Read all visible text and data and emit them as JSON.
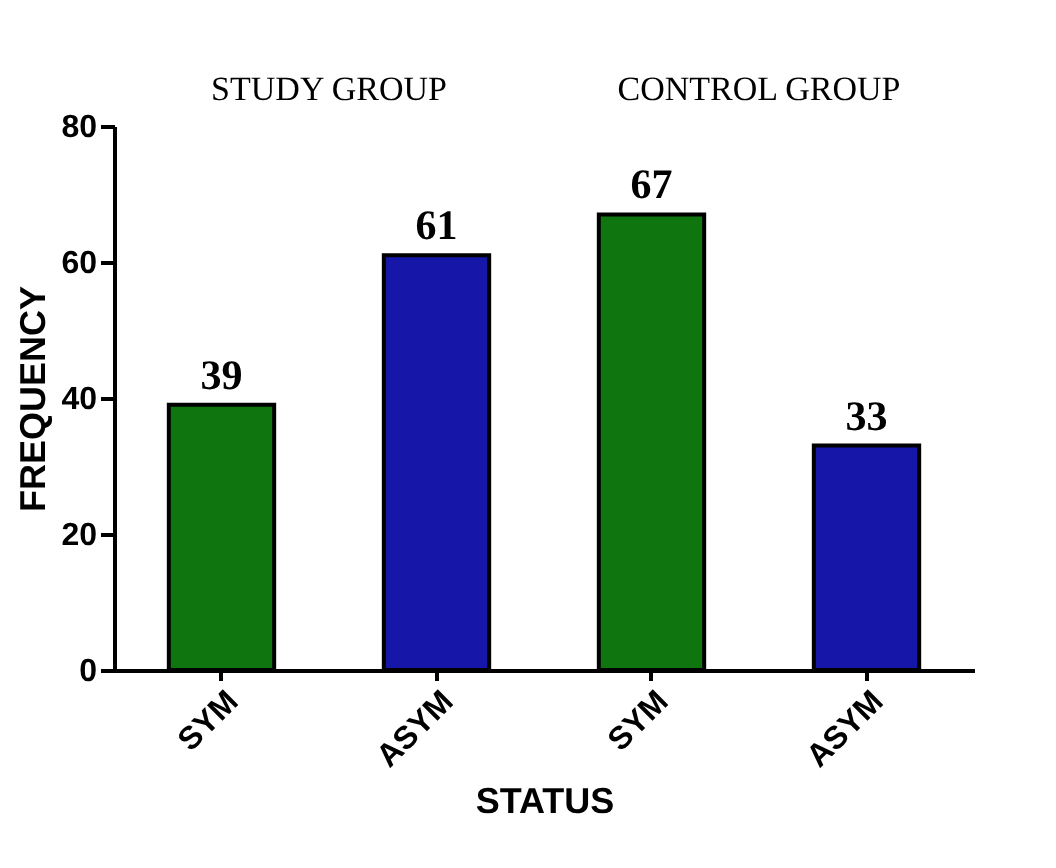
{
  "chart_data": {
    "type": "bar",
    "xlabel": "STATUS",
    "ylabel": "FREQUENCY",
    "categories": [
      "SYM",
      "ASYM",
      "SYM",
      "ASYM"
    ],
    "values": [
      39,
      61,
      67,
      33
    ],
    "colors": [
      "#0f750f",
      "#1616a8",
      "#0f750f",
      "#1616a8"
    ],
    "ylim": [
      0,
      80
    ],
    "yticks": [
      0,
      20,
      40,
      60,
      80
    ],
    "grid": false,
    "data_labels": true,
    "annotations": [
      "STUDY GROUP",
      "CONTROL GROUP"
    ]
  }
}
